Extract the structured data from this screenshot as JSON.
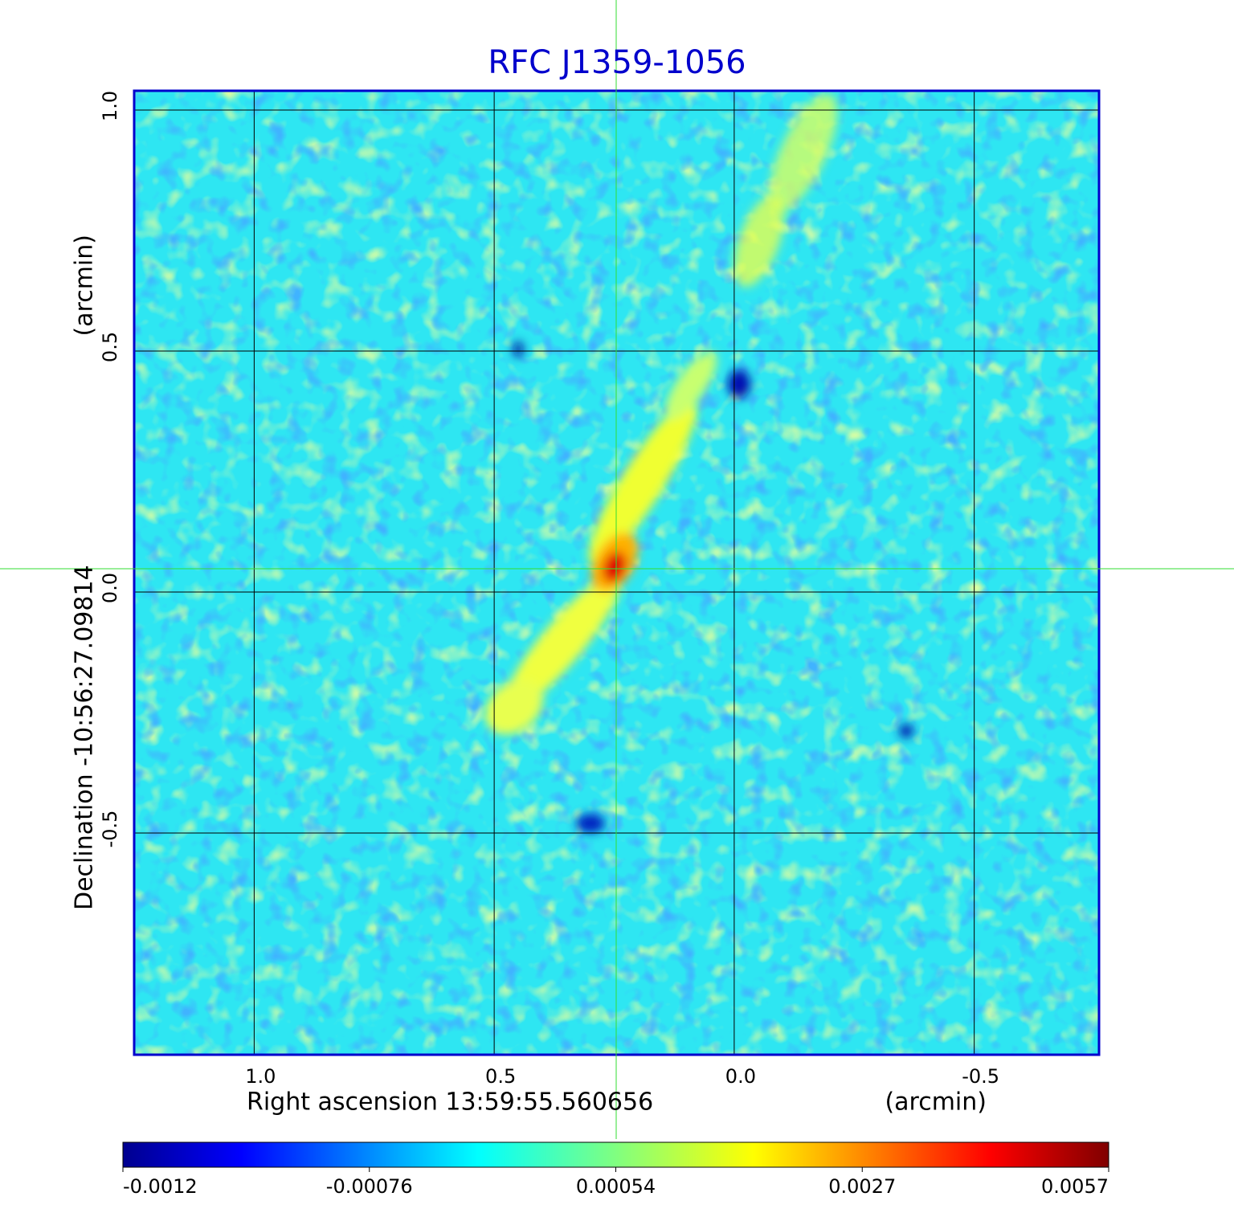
{
  "chart_data": {
    "type": "image",
    "title": "RFC J1359-1056",
    "xlabel": "Right ascension  13:59:55.560656",
    "xunit": "(arcmin)",
    "ylabel": "Declination  -10:56:27.09814",
    "yunit": "(arcmin)",
    "xlim": [
      1.25,
      -0.76
    ],
    "ylim": [
      -0.96,
      1.04
    ],
    "xticks": [
      {
        "value": 1,
        "label": "1.0"
      },
      {
        "value": 0.5,
        "label": "0.5"
      },
      {
        "value": 0,
        "label": "0.0"
      },
      {
        "value": -0.5,
        "label": "-0.5"
      }
    ],
    "yticks": [
      {
        "value": 1,
        "label": "1.0"
      },
      {
        "value": 0.5,
        "label": "0.5"
      },
      {
        "value": 0,
        "label": "0.0"
      },
      {
        "value": -0.5,
        "label": "-0.5"
      }
    ],
    "grid": true,
    "colorbar_ticks": [
      -0.0012,
      -0.00076,
      0.00054,
      0.0027,
      0.0057
    ]
  }
}
